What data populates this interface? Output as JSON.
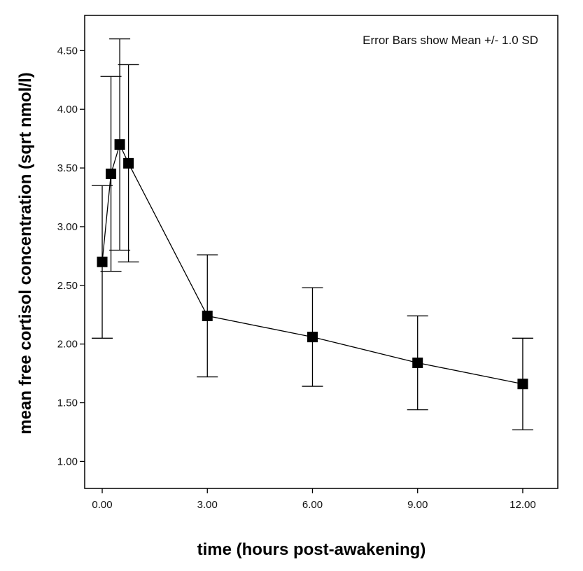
{
  "chart_data": {
    "type": "line",
    "xlabel": "time (hours post-awakening)",
    "ylabel": "mean free cortisol concentration (sqrt nmol/l)",
    "annotation": "Error Bars show Mean +/- 1.0 SD",
    "xlim": [
      -0.5,
      13.0
    ],
    "ylim": [
      0.77,
      4.8
    ],
    "x_ticks": [
      0.0,
      3.0,
      6.0,
      9.0,
      12.0
    ],
    "x_tick_labels": [
      "0.00",
      "3.00",
      "6.00",
      "9.00",
      "12.00"
    ],
    "y_ticks": [
      1.0,
      1.5,
      2.0,
      2.5,
      3.0,
      3.5,
      4.0,
      4.5
    ],
    "y_tick_labels": [
      "1.00",
      "1.50",
      "2.00",
      "2.50",
      "3.00",
      "3.50",
      "4.00",
      "4.50"
    ],
    "grid": false,
    "series": [
      {
        "x": [
          0.0,
          0.25,
          0.5,
          0.75,
          3.0,
          6.0,
          9.0,
          12.0
        ],
        "y": [
          2.7,
          3.45,
          3.7,
          3.54,
          2.24,
          2.06,
          1.84,
          1.66
        ],
        "sd": [
          0.65,
          0.83,
          0.9,
          0.84,
          0.52,
          0.42,
          0.4,
          0.39
        ]
      }
    ],
    "colors": {
      "line": "#000000",
      "marker": "#000000",
      "axis": "#000000"
    }
  }
}
